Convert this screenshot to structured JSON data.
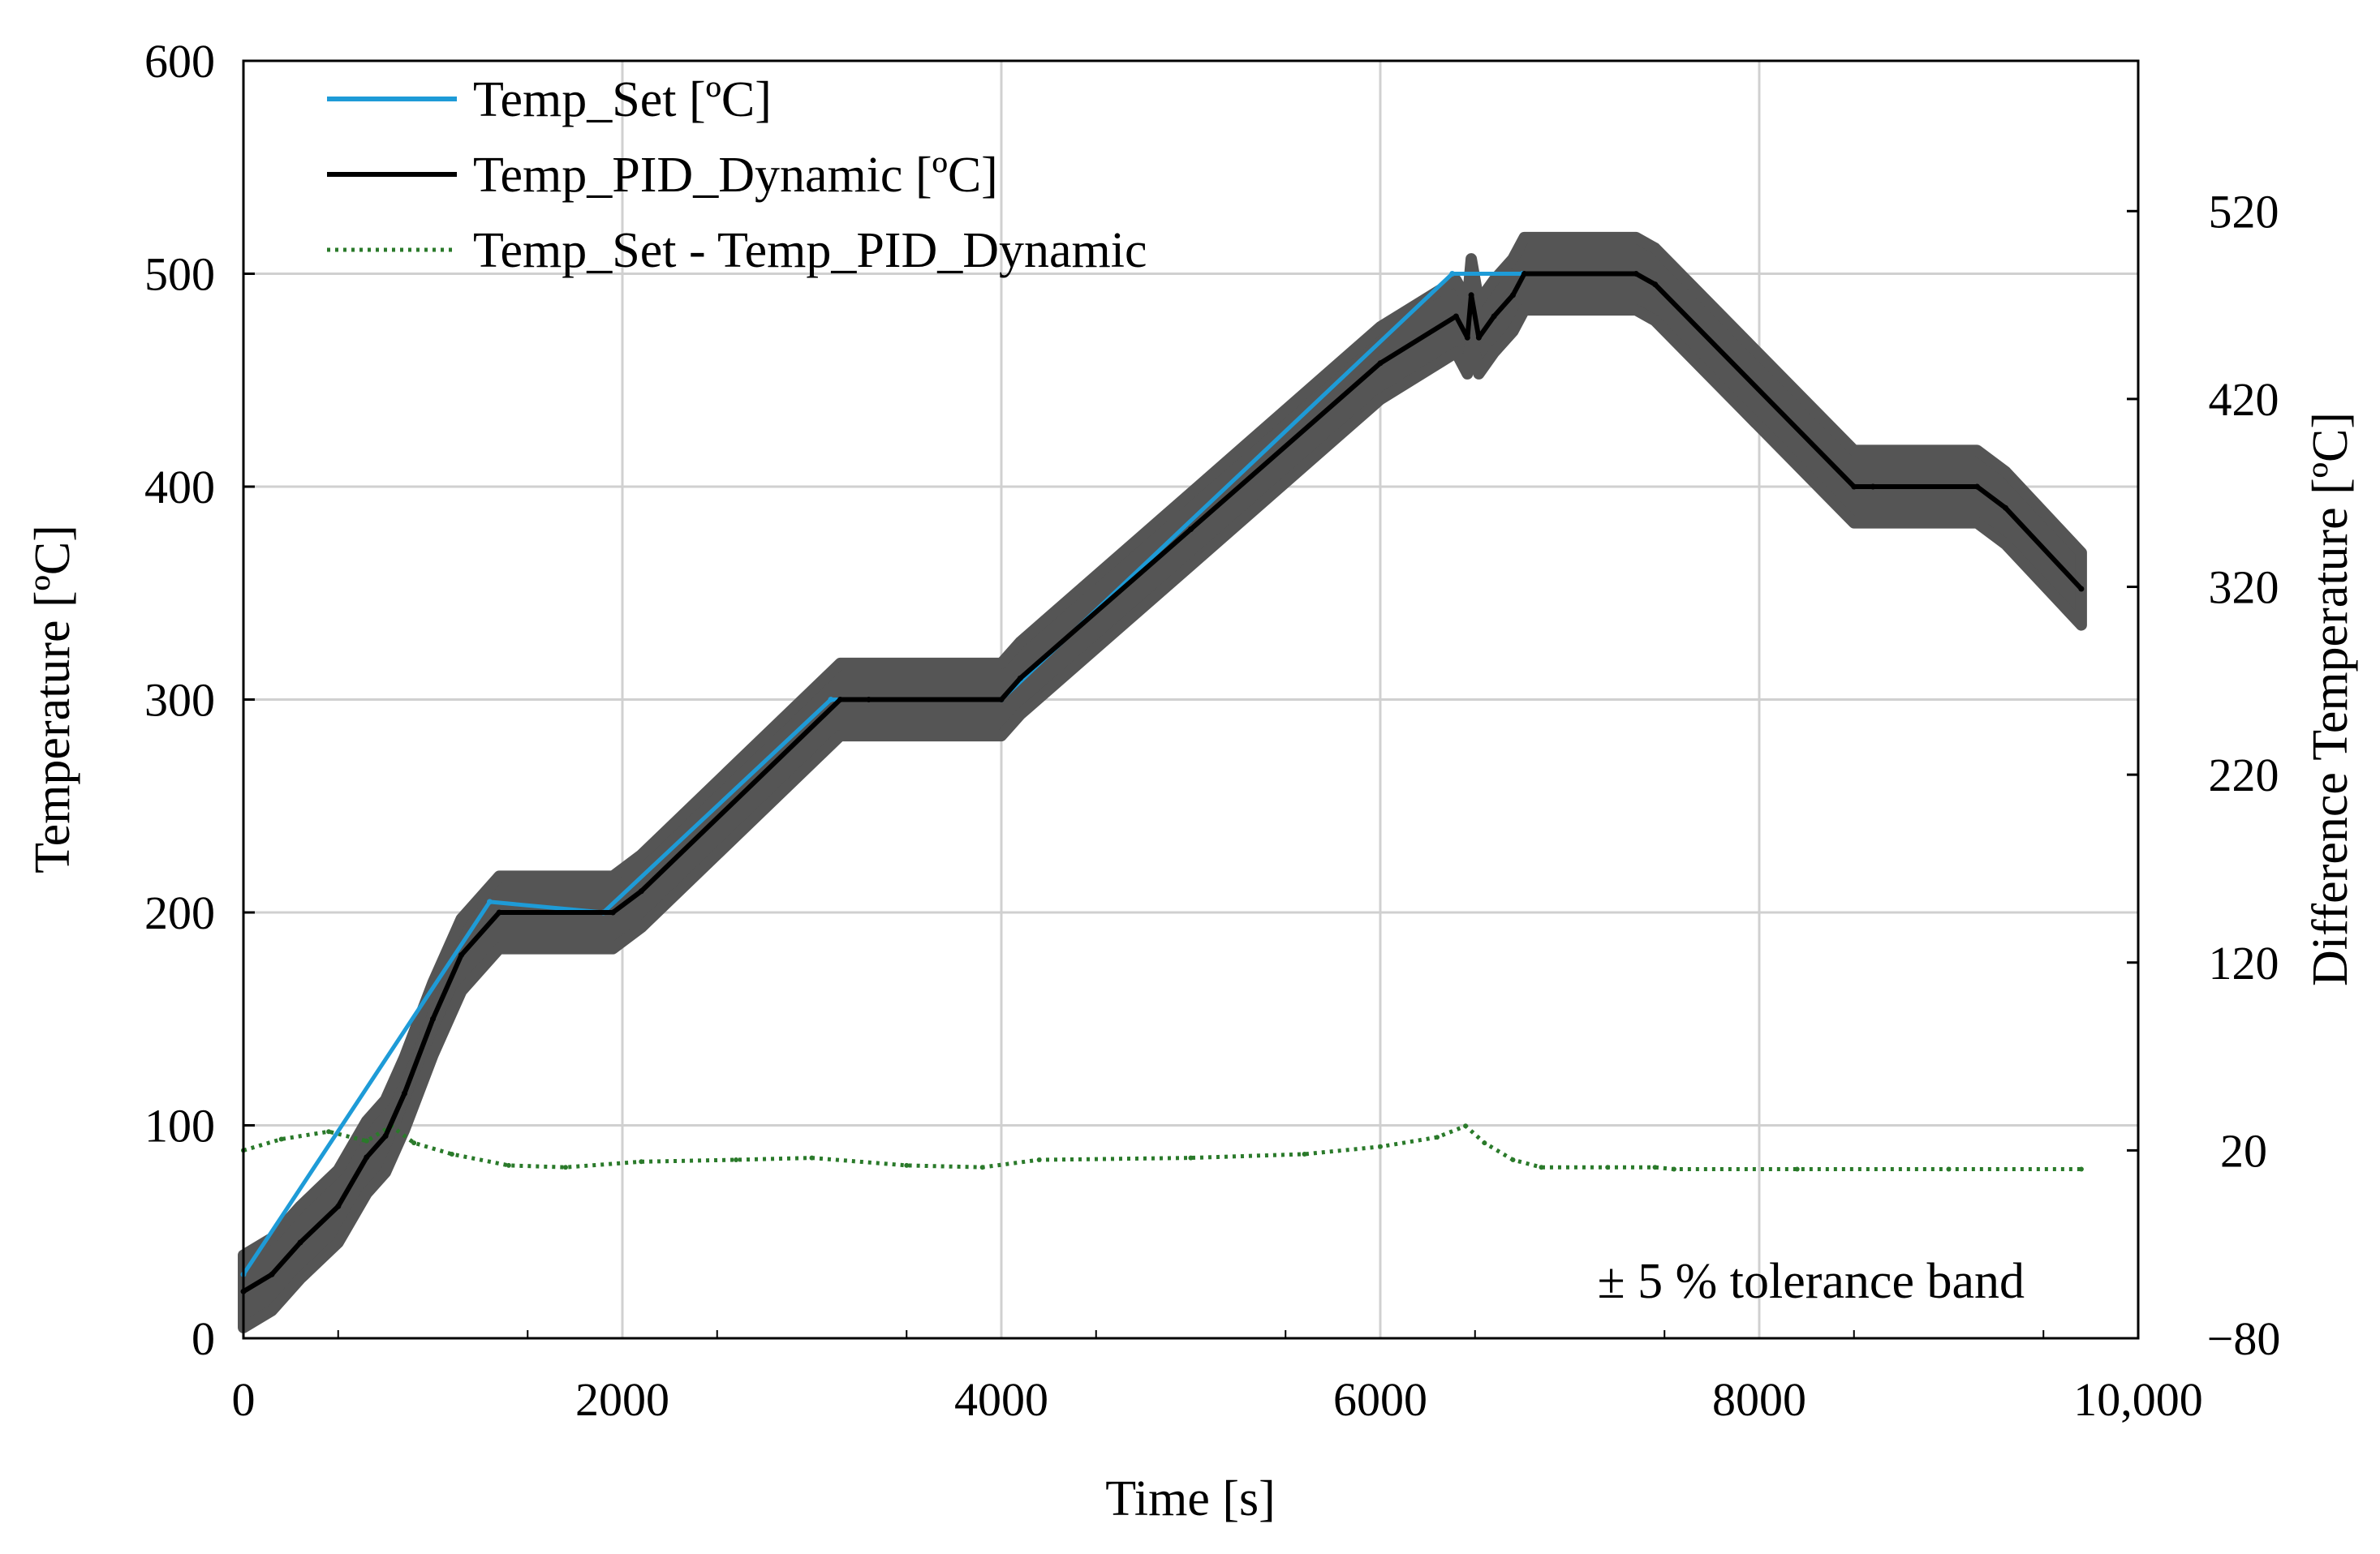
{
  "chart_data": {
    "type": "line",
    "title": "",
    "xlabel": "Time [s]",
    "ylabel": "Temperature [ºC]",
    "y2label": "Difference Temperature [ºC]",
    "xlim": [
      0,
      10000
    ],
    "ylim": [
      0,
      600
    ],
    "y2lim": [
      -80,
      600
    ],
    "grid": true,
    "legend_position": "top-left",
    "x_ticks": [
      {
        "value": 0,
        "label": "0"
      },
      {
        "value": 2000,
        "label": "2000"
      },
      {
        "value": 4000,
        "label": "4000"
      },
      {
        "value": 6000,
        "label": "6000"
      },
      {
        "value": 8000,
        "label": "8000"
      },
      {
        "value": 10000,
        "label": "10,000"
      }
    ],
    "y_ticks": [
      {
        "value": 0,
        "label": "0"
      },
      {
        "value": 100,
        "label": "100"
      },
      {
        "value": 200,
        "label": "200"
      },
      {
        "value": 300,
        "label": "300"
      },
      {
        "value": 400,
        "label": "400"
      },
      {
        "value": 500,
        "label": "500"
      },
      {
        "value": 600,
        "label": "600"
      }
    ],
    "y2_ticks": [
      {
        "value": -80,
        "label": "−80"
      },
      {
        "value": 20,
        "label": "20"
      },
      {
        "value": 120,
        "label": "120"
      },
      {
        "value": 220,
        "label": "220"
      },
      {
        "value": 320,
        "label": "320"
      },
      {
        "value": 420,
        "label": "420"
      },
      {
        "value": 520,
        "label": "520"
      }
    ],
    "band": {
      "name": "± 5 % tolerance band",
      "label": "± 5 %  tolerance band",
      "color": "#555555",
      "half_width": 17
    },
    "series": [
      {
        "name": "Temp_Set [ºC]",
        "axis": "left",
        "color": "#1e9bd7",
        "style": "solid",
        "x": [
          0,
          1300,
          1900,
          3100,
          4000,
          6380,
          6750
        ],
        "y": [
          30,
          205,
          200,
          300,
          300,
          500,
          500
        ]
      },
      {
        "name": "Temp_PID_Dynamic [ºC]",
        "axis": "left",
        "color": "#000000",
        "style": "solid",
        "x": [
          0,
          150,
          300,
          500,
          650,
          750,
          850,
          1000,
          1150,
          1350,
          1950,
          2100,
          3150,
          3300,
          4000,
          4100,
          5000,
          6000,
          6400,
          6460,
          6480,
          6520,
          6600,
          6700,
          6760,
          7350,
          7450,
          8500,
          8600,
          9150,
          9300,
          9700
        ],
        "y": [
          22,
          30,
          45,
          62,
          85,
          95,
          115,
          150,
          180,
          200,
          200,
          210,
          300,
          300,
          300,
          310,
          380,
          458,
          480,
          470,
          490,
          470,
          480,
          490,
          500,
          500,
          495,
          400,
          400,
          400,
          390,
          352
        ]
      },
      {
        "name": "Temp_Set - Temp_PID_Dynamic",
        "axis": "right",
        "color": "#2a7a2a",
        "style": "dotted",
        "x": [
          0,
          200,
          450,
          650,
          780,
          900,
          1100,
          1400,
          1700,
          2100,
          2600,
          3000,
          3500,
          3900,
          4200,
          5000,
          5600,
          6000,
          6300,
          6450,
          6550,
          6700,
          6850,
          7200,
          7450,
          7550,
          8200,
          9000,
          9700
        ],
        "y": [
          20,
          26,
          30,
          25,
          33,
          24,
          18,
          12,
          11,
          14,
          15,
          16,
          12,
          11,
          15,
          16,
          18,
          22,
          27,
          33,
          24,
          15,
          11,
          11,
          11,
          10,
          10,
          10,
          10
        ]
      }
    ]
  }
}
